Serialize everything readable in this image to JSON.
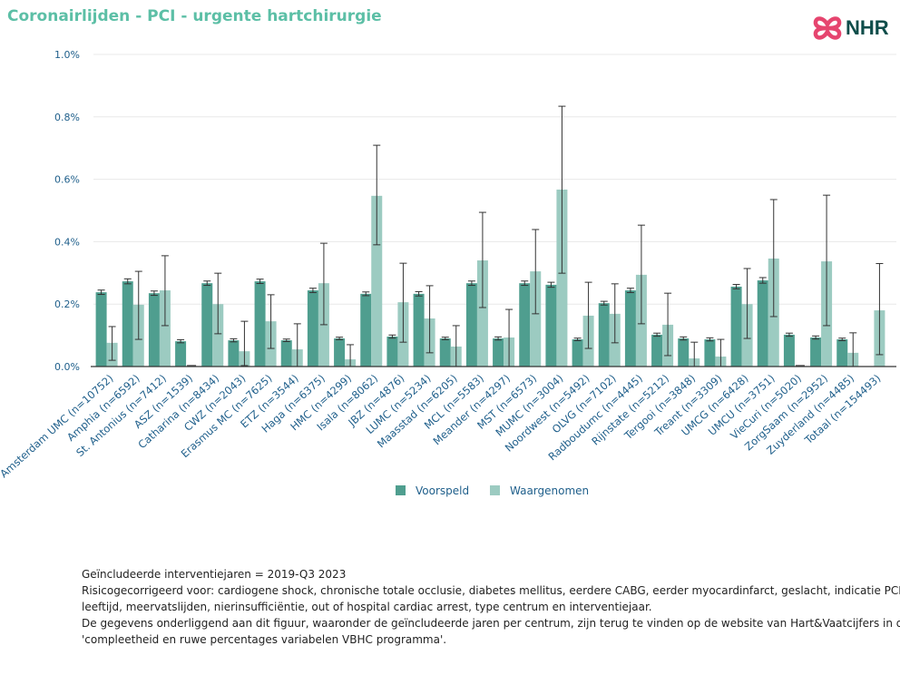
{
  "title": "Coronairlijden - PCI - urgente hartchirurgie",
  "logo": {
    "text": "NHR",
    "icon": "heart-knot-icon",
    "color": "#e6456f"
  },
  "chart_data": {
    "type": "bar",
    "title": "Coronairlijden - PCI - urgente hartchirurgie",
    "xlabel": "",
    "ylabel": "",
    "ylim": [
      0,
      1.0
    ],
    "yticks": [
      "0.0%",
      "0.2%",
      "0.4%",
      "0.6%",
      "0.8%",
      "1.0%"
    ],
    "grid": true,
    "legend": "bottom",
    "categories": [
      "Amsterdam UMC (n=10752)",
      "Amphia (n=6592)",
      "St. Antonius (n=7412)",
      "ASZ (n=1539)",
      "Catharina (n=8434)",
      "CWZ (n=2043)",
      "Erasmus MC (n=7625)",
      "ETZ (n=3544)",
      "Haga (n=6375)",
      "HMC (n=4299)",
      "Isala (n=8062)",
      "JBZ (n=4876)",
      "LUMC (n=5234)",
      "Maasstad (n=6205)",
      "MCL (n=5583)",
      "Meander (n=4297)",
      "MST (n=6573)",
      "MUMC (n=3004)",
      "Noordwest (n=5492)",
      "OLVG (n=7102)",
      "Radboudumc (n=4445)",
      "Rijnstate (n=5212)",
      "Tergooi (n=3848)",
      "Treant (n=3309)",
      "UMCG (n=6428)",
      "UMCU (n=3751)",
      "VieCuri (n=5020)",
      "ZorgSaam (n=2952)",
      "Zuyderland (n=4485)",
      "Totaal (n=154493)"
    ],
    "series": [
      {
        "name": "Voorspeld",
        "color": "#4f9e8f",
        "values": [
          0.238,
          0.273,
          0.235,
          0.081,
          0.267,
          0.084,
          0.273,
          0.084,
          0.244,
          0.09,
          0.233,
          0.096,
          0.233,
          0.09,
          0.267,
          0.09,
          0.267,
          0.262,
          0.087,
          0.203,
          0.244,
          0.102,
          0.09,
          0.087,
          0.256,
          0.276,
          0.102,
          0.093,
          0.087,
          null
        ],
        "lower": [
          0.231,
          0.265,
          0.228,
          0.076,
          0.26,
          0.079,
          0.266,
          0.08,
          0.237,
          0.086,
          0.227,
          0.091,
          0.226,
          0.086,
          0.26,
          0.085,
          0.26,
          0.254,
          0.083,
          0.197,
          0.237,
          0.097,
          0.085,
          0.082,
          0.249,
          0.267,
          0.097,
          0.088,
          0.083,
          null
        ],
        "upper": [
          0.245,
          0.281,
          0.242,
          0.086,
          0.274,
          0.089,
          0.28,
          0.088,
          0.251,
          0.094,
          0.239,
          0.101,
          0.24,
          0.094,
          0.274,
          0.095,
          0.274,
          0.27,
          0.091,
          0.209,
          0.251,
          0.107,
          0.095,
          0.092,
          0.263,
          0.285,
          0.107,
          0.098,
          0.091,
          null
        ]
      },
      {
        "name": "Waargenomen",
        "color": "#9ccbc1",
        "values": [
          0.076,
          0.198,
          0.244,
          0.0,
          0.2,
          0.049,
          0.145,
          0.055,
          0.267,
          0.023,
          0.547,
          0.206,
          0.154,
          0.064,
          0.34,
          0.093,
          0.305,
          0.567,
          0.163,
          0.169,
          0.294,
          0.134,
          0.026,
          0.032,
          0.2,
          0.346,
          0.0,
          0.337,
          0.044,
          0.18
        ],
        "lower": [
          0.02,
          0.087,
          0.131,
          0.0,
          0.105,
          0.003,
          0.058,
          0.0,
          0.134,
          0.0,
          0.39,
          0.078,
          0.044,
          0.0,
          0.189,
          0.0,
          0.169,
          0.299,
          0.058,
          0.076,
          0.137,
          0.035,
          0.0,
          0.0,
          0.09,
          0.16,
          0.0,
          0.131,
          0.0,
          0.038
        ],
        "upper": [
          0.128,
          0.305,
          0.355,
          0.0,
          0.299,
          0.145,
          0.23,
          0.137,
          0.395,
          0.07,
          0.709,
          0.331,
          0.259,
          0.131,
          0.494,
          0.183,
          0.439,
          0.834,
          0.27,
          0.265,
          0.453,
          0.235,
          0.078,
          0.087,
          0.314,
          0.535,
          0.0,
          0.549,
          0.108,
          0.33
        ]
      }
    ]
  },
  "footnote": [
    "Geïncludeerde interventiejaren = 2019-Q3 2023",
    "Risicogecorrigeerd voor: cardiogene shock, chronische totale occlusie, diabetes mellitus, eerdere CABG, eerder myocardinfarct, geslacht, indicatie PCI,",
    "leeftijd, meervatslijden, nierinsufficiëntie, out of hospital cardiac arrest, type centrum en interventiejaar.",
    "De gegevens onderliggend aan dit figuur, waaronder de geïncludeerde jaren per centrum, zijn terug te vinden op de website van Hart&Vaatcijfers in de tabel",
    "'compleetheid en ruwe percentages variabelen VBHC programma'."
  ]
}
